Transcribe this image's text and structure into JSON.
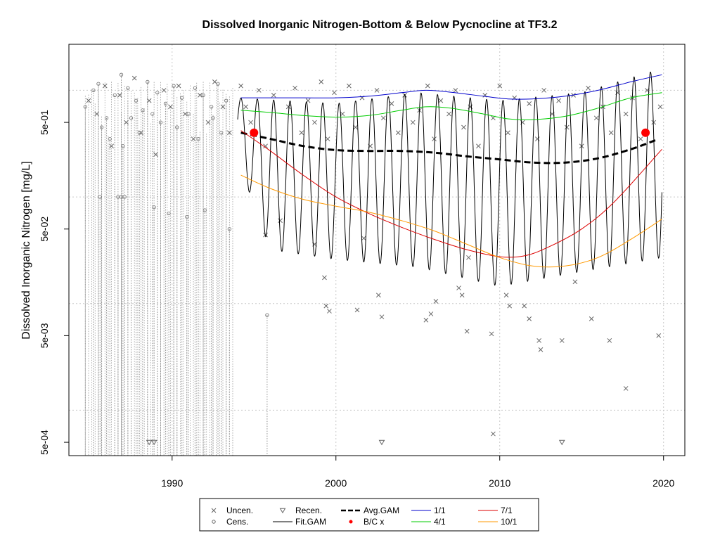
{
  "chart_data": {
    "type": "scatter",
    "title": "Dissolved Inorganic Nitrogen-Bottom & Below Pycnocline at TF3.2",
    "xlabel": "",
    "ylabel": "Dissolved Inorganic Nitrogen [mg/L]",
    "y_scale": "log",
    "xlim": [
      1983.7,
      2021.3
    ],
    "ylim": [
      0.000375,
      2.7
    ],
    "grid": true,
    "x_ticks": [
      1990,
      2000,
      2010,
      2020
    ],
    "x_tick_labels": [
      "1990",
      "2000",
      "2010",
      "2020"
    ],
    "y_ticks": [
      0.0005,
      0.005,
      0.05,
      0.5
    ],
    "y_tick_labels": [
      "5e-04",
      "5e-03",
      "5e-02",
      "5e-01"
    ],
    "y_gridlines": [
      0.001,
      0.01,
      0.1,
      1
    ],
    "x_gridlines": [
      1990,
      2000,
      2010,
      2020
    ],
    "legend": {
      "position": "bottom-center",
      "entries": [
        {
          "label": "Uncen.",
          "symbol": "x",
          "color": "#666666"
        },
        {
          "label": "Cens.",
          "symbol": "circle",
          "color": "#666666"
        },
        {
          "label": "Recen.",
          "symbol": "triangle-down",
          "color": "#666666"
        },
        {
          "label": "Fit.GAM",
          "symbol": "line",
          "color": "#000000"
        },
        {
          "label": "Avg.GAM",
          "symbol": "dashed-line",
          "color": "#000000"
        },
        {
          "label": "B/C x",
          "symbol": "dot",
          "color": "#ff0000"
        },
        {
          "label": "1/1",
          "symbol": "line",
          "color": "#0000cc"
        },
        {
          "label": "4/1",
          "symbol": "line",
          "color": "#00cc00"
        },
        {
          "label": "7/1",
          "symbol": "line",
          "color": "#dd0000"
        },
        {
          "label": "10/1",
          "symbol": "line",
          "color": "#ff9900"
        }
      ]
    },
    "fit_gam": {
      "x_range": [
        1994.0,
        2019.9
      ],
      "period_years": 1,
      "peak": [
        [
          1994.0,
          0.85
        ],
        [
          2000,
          0.75
        ],
        [
          2005,
          0.95
        ],
        [
          2010,
          0.8
        ],
        [
          2015,
          0.95
        ],
        [
          2019.9,
          1.6
        ]
      ],
      "trough": [
        [
          1994.0,
          0.22
        ],
        [
          1996,
          0.032
        ],
        [
          2000,
          0.026
        ],
        [
          2005,
          0.022
        ],
        [
          2010,
          0.0145
        ],
        [
          2015,
          0.02
        ],
        [
          2019.9,
          0.027
        ]
      ]
    },
    "series": [
      {
        "name": "Avg.GAM",
        "style": "dashed",
        "color": "#000000",
        "x": [
          1994.2,
          1996,
          1998,
          2000,
          2002,
          2004,
          2006,
          2008,
          2010,
          2012,
          2014,
          2016,
          2018,
          2019.5
        ],
        "y": [
          0.4,
          0.35,
          0.3,
          0.275,
          0.27,
          0.27,
          0.26,
          0.24,
          0.225,
          0.21,
          0.21,
          0.23,
          0.28,
          0.34
        ]
      },
      {
        "name": "1/1",
        "style": "solid",
        "color": "#0000cc",
        "x": [
          1994.2,
          1996,
          1998,
          2000,
          2002,
          2004,
          2005.5,
          2007,
          2009,
          2010.5,
          2012,
          2014,
          2016,
          2018,
          2019.9
        ],
        "y": [
          0.85,
          0.85,
          0.85,
          0.85,
          0.88,
          0.95,
          1.0,
          0.96,
          0.88,
          0.83,
          0.83,
          0.88,
          1.0,
          1.2,
          1.4
        ]
      },
      {
        "name": "4/1",
        "style": "solid",
        "color": "#00cc00",
        "x": [
          1994.2,
          1996,
          1998,
          2000,
          2002,
          2004,
          2005.5,
          2007,
          2009,
          2010.5,
          2012,
          2014,
          2016,
          2018,
          2019.9
        ],
        "y": [
          0.65,
          0.62,
          0.58,
          0.56,
          0.58,
          0.65,
          0.7,
          0.68,
          0.6,
          0.54,
          0.53,
          0.57,
          0.68,
          0.85,
          0.95
        ]
      },
      {
        "name": "7/1",
        "style": "solid",
        "color": "#dd0000",
        "x": [
          1994.2,
          1996,
          1998,
          2000,
          2002,
          2004,
          2006,
          2008,
          2010,
          2011.5,
          2013,
          2015,
          2017,
          2019.9
        ],
        "y": [
          0.42,
          0.27,
          0.16,
          0.1,
          0.07,
          0.052,
          0.04,
          0.032,
          0.0275,
          0.028,
          0.034,
          0.05,
          0.09,
          0.28
        ]
      },
      {
        "name": "10/1",
        "style": "solid",
        "color": "#ff9900",
        "x": [
          1994.2,
          1996,
          1998,
          2000,
          2002,
          2004,
          2006,
          2008,
          2010,
          2012,
          2014,
          2016,
          2018,
          2019.9
        ],
        "y": [
          0.16,
          0.12,
          0.095,
          0.082,
          0.072,
          0.06,
          0.048,
          0.036,
          0.027,
          0.0225,
          0.0225,
          0.027,
          0.04,
          0.062
        ]
      },
      {
        "name": "B/C x",
        "style": "points",
        "color": "#ff0000",
        "x": [
          1995.0,
          2018.9
        ],
        "y": [
          0.4,
          0.4
        ]
      }
    ],
    "uncensored_points": {
      "x": [
        1984.9,
        1985.4,
        1985.9,
        1986.3,
        1986.8,
        1987.2,
        1987.7,
        1988.1,
        1988.6,
        1989.0,
        1989.5,
        1989.9,
        1990.4,
        1990.8,
        1991.3,
        1991.7,
        1992.2,
        1992.6,
        1993.1,
        1993.5,
        1994.2,
        1994.5,
        1994.8,
        1995.3,
        1995.7,
        1996.2,
        1996.6,
        1997.1,
        1997.5,
        1997.9,
        1998.3,
        1998.7,
        1999.1,
        1999.5,
        1999.9,
        2000.4,
        2000.8,
        2001.2,
        2001.6,
        2002.1,
        2002.5,
        2002.9,
        2003.4,
        2003.8,
        2004.2,
        2004.7,
        2005.1,
        2005.6,
        2006.0,
        2006.4,
        2006.9,
        2007.3,
        2007.8,
        2008.2,
        2008.7,
        2009.1,
        2009.6,
        2010.0,
        2010.5,
        2010.9,
        2011.4,
        2011.8,
        2012.3,
        2012.7,
        2013.2,
        2013.6,
        2014.1,
        2014.5,
        2015.0,
        2015.4,
        2015.9,
        2016.3,
        2016.8,
        2017.2,
        2017.7,
        2018.1,
        2018.6,
        2019.0,
        2019.4,
        2019.8,
        1998.7,
        1999.3,
        1999.6,
        2002.6,
        2002.8,
        2005.5,
        2005.8,
        2007.5,
        2007.7,
        2008.0,
        2009.5,
        2010.4,
        2010.6,
        2011.5,
        2011.8,
        2012.4,
        2012.5,
        2013.8,
        2014.6,
        2015.6,
        2016.7,
        2017.7,
        2019.7,
        2009.6,
        1995.7,
        2001.7,
        2008.1,
        1999.4,
        2001.3,
        2006.1
      ],
      "y": [
        0.8,
        0.6,
        1.1,
        0.3,
        0.9,
        0.5,
        1.3,
        0.4,
        0.8,
        0.25,
        1.0,
        0.7,
        1.1,
        0.6,
        0.35,
        0.9,
        0.5,
        1.2,
        0.7,
        0.4,
        1.1,
        0.7,
        0.5,
        1.0,
        0.3,
        0.9,
        0.06,
        0.7,
        1.05,
        0.4,
        0.8,
        0.5,
        1.2,
        0.35,
        0.95,
        0.6,
        1.1,
        0.45,
        0.85,
        0.3,
        1.0,
        0.55,
        0.75,
        0.4,
        0.9,
        0.5,
        0.65,
        1.1,
        0.35,
        0.8,
        0.6,
        1.0,
        0.45,
        0.7,
        0.3,
        0.9,
        0.55,
        1.1,
        0.4,
        0.85,
        0.5,
        0.75,
        0.35,
        1.0,
        0.6,
        0.8,
        0.45,
        0.9,
        0.3,
        1.05,
        0.55,
        0.7,
        0.4,
        0.95,
        0.6,
        0.85,
        0.35,
        1.0,
        0.5,
        0.7,
        0.036,
        0.0175,
        0.0085,
        0.012,
        0.0075,
        0.007,
        0.008,
        0.014,
        0.012,
        0.0055,
        0.0052,
        0.012,
        0.0095,
        0.0095,
        0.0072,
        0.0045,
        0.0037,
        0.0045,
        0.016,
        0.0072,
        0.0045,
        0.0016,
        0.005,
        0.0006,
        0.044,
        0.041,
        0.027,
        0.0095,
        0.0087,
        0.0105
      ]
    },
    "censored_points": {
      "x": [
        1984.7,
        1985.2,
        1985.5,
        1986.0,
        1986.5,
        1986.9,
        1987.3,
        1987.8,
        1988.2,
        1988.5,
        1989.1,
        1989.6,
        1990.1,
        1990.6,
        1991.0,
        1991.4,
        1991.9,
        1992.4,
        1992.8,
        1993.3,
        1985.7,
        1986.2,
        1987.0,
        1987.5,
        1988.0,
        1988.8,
        1989.3,
        1990.3,
        1991.6,
        1992.5,
        1993.0,
        1986.9,
        1987.1,
        1986.7,
        1985.6,
        1988.9,
        1989.8,
        1990.9,
        1992.0,
        1993.5,
        1995.8
      ],
      "y": [
        0.7,
        1.0,
        1.15,
        0.55,
        0.9,
        1.4,
        1.05,
        0.8,
        0.65,
        1.2,
        0.95,
        0.75,
        1.1,
        0.85,
        0.6,
        1.05,
        0.9,
        0.7,
        1.15,
        0.8,
        0.45,
        0.35,
        0.3,
        0.55,
        0.4,
        0.6,
        0.5,
        0.45,
        0.35,
        0.55,
        0.4,
        0.1,
        0.1,
        0.1,
        0.1,
        0.08,
        0.07,
        0.065,
        0.075,
        0.05,
        0.0078
      ],
      "drop_to": 0.000375
    },
    "recensored_points": {
      "x": [
        1988.6,
        1988.9,
        2002.8,
        2013.8
      ],
      "y": [
        0.0005,
        0.0005,
        0.0005,
        0.0005
      ]
    }
  }
}
